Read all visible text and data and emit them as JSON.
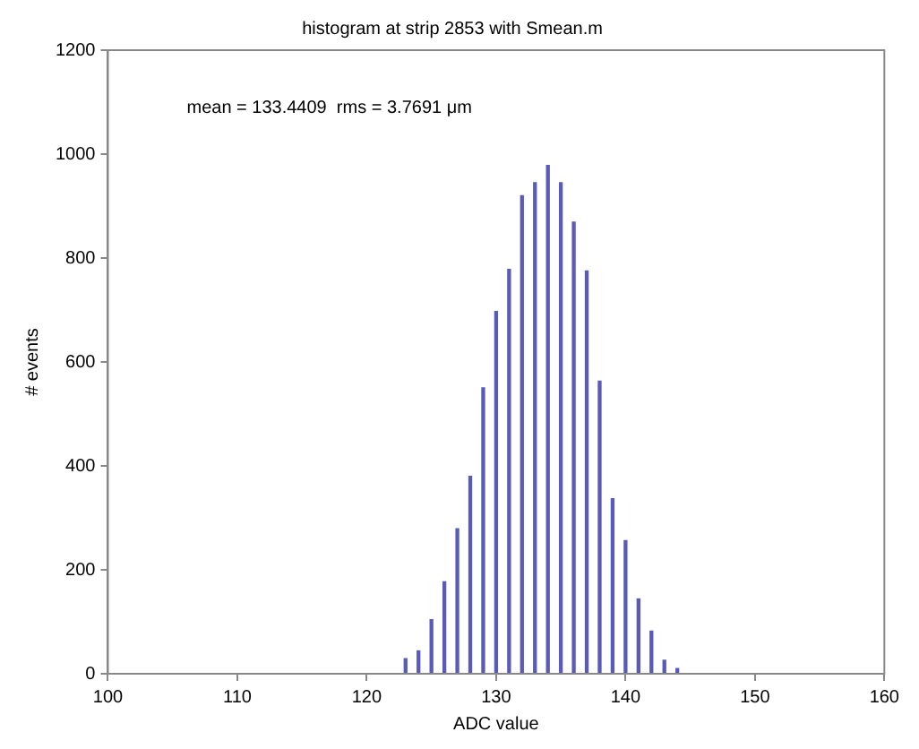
{
  "chart_data": {
    "type": "histogram",
    "title": "histogram at strip 2853 with Smean.m",
    "xlabel": "ADC value",
    "ylabel": "# events",
    "bins": [
      122.5,
      123.5,
      124.5,
      125.5,
      126.5,
      127.5,
      128.5,
      129.5,
      130.5,
      131.5,
      132.5,
      133.5,
      134.5,
      135.5,
      136.5,
      137.5,
      138.5,
      139.5,
      140.5,
      141.5,
      142.5,
      143.5,
      144.5
    ],
    "values": [
      29,
      44,
      104,
      177,
      279,
      380,
      550,
      697,
      778,
      920,
      945,
      978,
      945,
      869,
      775,
      563,
      337,
      256,
      144,
      82,
      26,
      10
    ],
    "color": "#5a5ab8",
    "xlim": [
      100,
      160
    ],
    "xticks": [
      100,
      110,
      120,
      130,
      140,
      150,
      160
    ],
    "ylim": [
      0,
      1200
    ],
    "yticks": [
      0,
      200,
      400,
      600,
      800,
      1000,
      1200
    ],
    "grid": false,
    "legend": false,
    "annotations": [
      "mean = 133.4409  rms = 3.7691 μm"
    ]
  }
}
